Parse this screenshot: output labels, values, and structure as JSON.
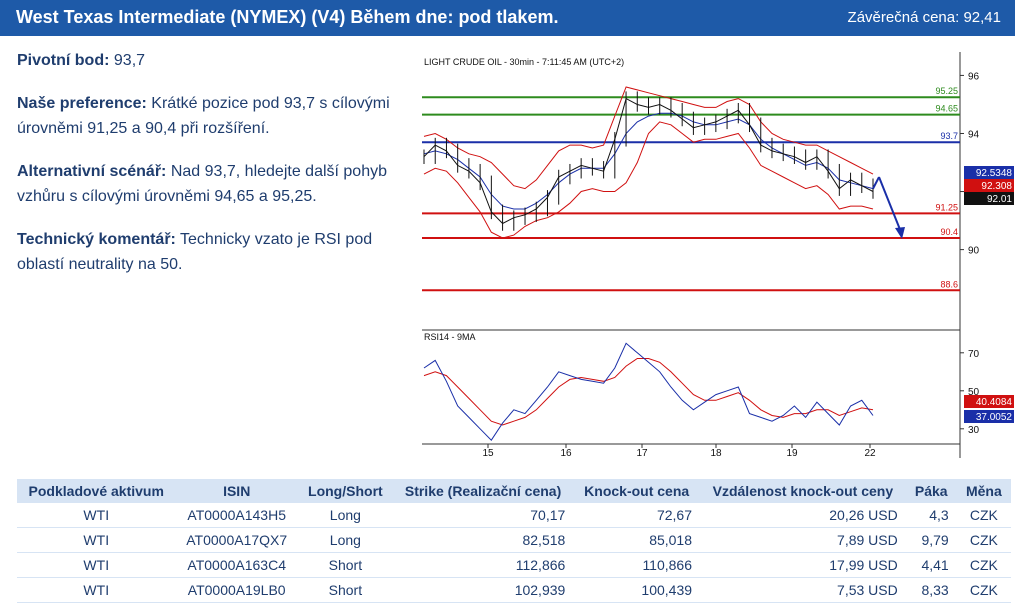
{
  "header": {
    "title": "West Texas Intermediate (NYMEX) (V4) Během dne: pod tlakem.",
    "close_label": "Závěrečná cena:",
    "close_value": "92,41"
  },
  "analysis": {
    "pivot_label": "Pivotní bod:",
    "pivot_value": "93,7",
    "pref_label": "Naše preference:",
    "pref_text": "Krátké pozice pod 93,7 s cílovými úrovněmi 91,25 a 90,4 při rozšíření.",
    "alt_label": "Alternativní scénář:",
    "alt_text": "Nad 93,7, hledejte další pohyb vzhůru s cílovými úrovněmi 94,65 a 95,25.",
    "tech_label": "Technický komentář:",
    "tech_text": "Technicky vzato je RSI pod oblastí neutrality na 50."
  },
  "chart_data": {
    "type": "line",
    "title": "LIGHT CRUDE OIL - 30min - 7:11:45 AM (UTC+2)",
    "x_labels": [
      "15",
      "16",
      "17",
      "18",
      "19",
      "22"
    ],
    "price_axis": {
      "ticks": [
        "96",
        "94",
        "92",
        "90"
      ],
      "ylim": [
        87.3,
        96.6
      ]
    },
    "levels": [
      {
        "label": "95.25",
        "value": 95.25,
        "color": "#2e8b1e"
      },
      {
        "label": "94.65",
        "value": 94.65,
        "color": "#2e8b1e"
      },
      {
        "label": "93.7",
        "value": 93.7,
        "color": "#1a2fa8"
      },
      {
        "label": "91.25",
        "value": 91.25,
        "color": "#d01010"
      },
      {
        "label": "90.4",
        "value": 90.4,
        "color": "#d01010"
      },
      {
        "label": "88.6",
        "value": 88.6,
        "color": "#d01010"
      }
    ],
    "price_badges": [
      {
        "label": "92.5348",
        "color": "#1a2fa8"
      },
      {
        "label": "92.308",
        "color": "#d01010"
      },
      {
        "label": "92.01",
        "color": "#111111"
      }
    ],
    "price_series": [
      93.2,
      93.6,
      93.4,
      92.9,
      92.7,
      92.3,
      91.3,
      90.9,
      91.1,
      91.2,
      91.4,
      91.8,
      92.5,
      92.7,
      92.9,
      92.8,
      92.7,
      93.8,
      95.2,
      95.0,
      94.9,
      95.0,
      94.8,
      94.5,
      94.2,
      94.3,
      94.4,
      94.6,
      94.8,
      94.3,
      93.6,
      93.4,
      93.3,
      93.2,
      93.0,
      93.2,
      92.7,
      92.1,
      92.4,
      92.2,
      92.0
    ],
    "bollinger_upper": [
      93.9,
      94.0,
      93.8,
      93.5,
      93.3,
      93.2,
      93.0,
      92.6,
      92.2,
      92.1,
      92.4,
      92.9,
      93.4,
      93.6,
      93.6,
      93.5,
      93.6,
      94.6,
      95.6,
      95.5,
      95.4,
      95.3,
      95.2,
      95.1,
      95.0,
      94.9,
      94.9,
      95.1,
      95.2,
      95.0,
      94.4,
      94.0,
      93.8,
      93.7,
      93.6,
      93.6,
      93.4,
      93.2,
      93.0,
      92.8,
      92.6
    ],
    "bollinger_lower": [
      92.6,
      92.8,
      92.7,
      92.3,
      91.8,
      91.3,
      90.6,
      90.4,
      90.5,
      90.8,
      91.0,
      91.1,
      91.3,
      91.6,
      92.0,
      92.1,
      92.0,
      92.0,
      92.3,
      93.0,
      94.0,
      94.4,
      94.3,
      94.0,
      93.7,
      93.8,
      93.8,
      93.9,
      94.0,
      93.5,
      92.9,
      92.7,
      92.5,
      92.3,
      92.1,
      92.2,
      91.9,
      91.4,
      91.5,
      91.5,
      91.4
    ],
    "moving_average": [
      93.3,
      93.4,
      93.3,
      93.1,
      92.8,
      92.5,
      91.9,
      91.5,
      91.4,
      91.4,
      91.6,
      91.9,
      92.3,
      92.6,
      92.8,
      92.8,
      92.8,
      93.3,
      94.0,
      94.4,
      94.6,
      94.7,
      94.7,
      94.6,
      94.4,
      94.3,
      94.3,
      94.4,
      94.5,
      94.3,
      93.8,
      93.5,
      93.3,
      93.1,
      92.9,
      93.0,
      92.8,
      92.4,
      92.3,
      92.2,
      92.1
    ],
    "projection": [
      [
        92.1,
        92.5
      ],
      [
        90.4,
        90.4
      ]
    ],
    "rsi": {
      "title": "RSI14 - 9MA",
      "ticks": [
        "70",
        "50",
        "30"
      ],
      "ylim": [
        22,
        82
      ],
      "badges": [
        {
          "label": "40.4084",
          "color": "#d01010"
        },
        {
          "label": "37.0052",
          "color": "#1a2fa8"
        }
      ],
      "rsi_series": [
        62,
        66,
        55,
        42,
        36,
        30,
        24,
        33,
        40,
        38,
        45,
        52,
        60,
        58,
        56,
        55,
        54,
        62,
        75,
        70,
        65,
        60,
        52,
        45,
        40,
        44,
        48,
        50,
        52,
        38,
        36,
        34,
        37,
        42,
        36,
        44,
        38,
        32,
        42,
        45,
        37
      ],
      "ma_series": [
        58,
        60,
        58,
        52,
        46,
        40,
        34,
        32,
        34,
        36,
        40,
        46,
        52,
        56,
        57,
        56,
        55,
        57,
        63,
        67,
        67,
        65,
        60,
        54,
        48,
        45,
        45,
        47,
        49,
        45,
        40,
        37,
        36,
        38,
        38,
        40,
        40,
        37,
        39,
        41,
        40
      ]
    }
  },
  "table": {
    "headers": [
      "Podkladové aktivum",
      "ISIN",
      "Long/Short",
      "Strike (Realizační cena)",
      "Knock-out cena",
      "Vzdálenost knock-out ceny",
      "Páka",
      "Měna"
    ],
    "rows": [
      [
        "WTI",
        "AT0000A143H5",
        "Long",
        "70,17",
        "72,67",
        "20,26 USD",
        "4,3",
        "CZK"
      ],
      [
        "WTI",
        "AT0000A17QX7",
        "Long",
        "82,518",
        "85,018",
        "7,89 USD",
        "9,79",
        "CZK"
      ],
      [
        "WTI",
        "AT0000A163C4",
        "Short",
        "112,866",
        "110,866",
        "17,99 USD",
        "4,41",
        "CZK"
      ],
      [
        "WTI",
        "AT0000A19LB0",
        "Short",
        "102,939",
        "100,439",
        "7,53 USD",
        "8,33",
        "CZK"
      ]
    ]
  }
}
